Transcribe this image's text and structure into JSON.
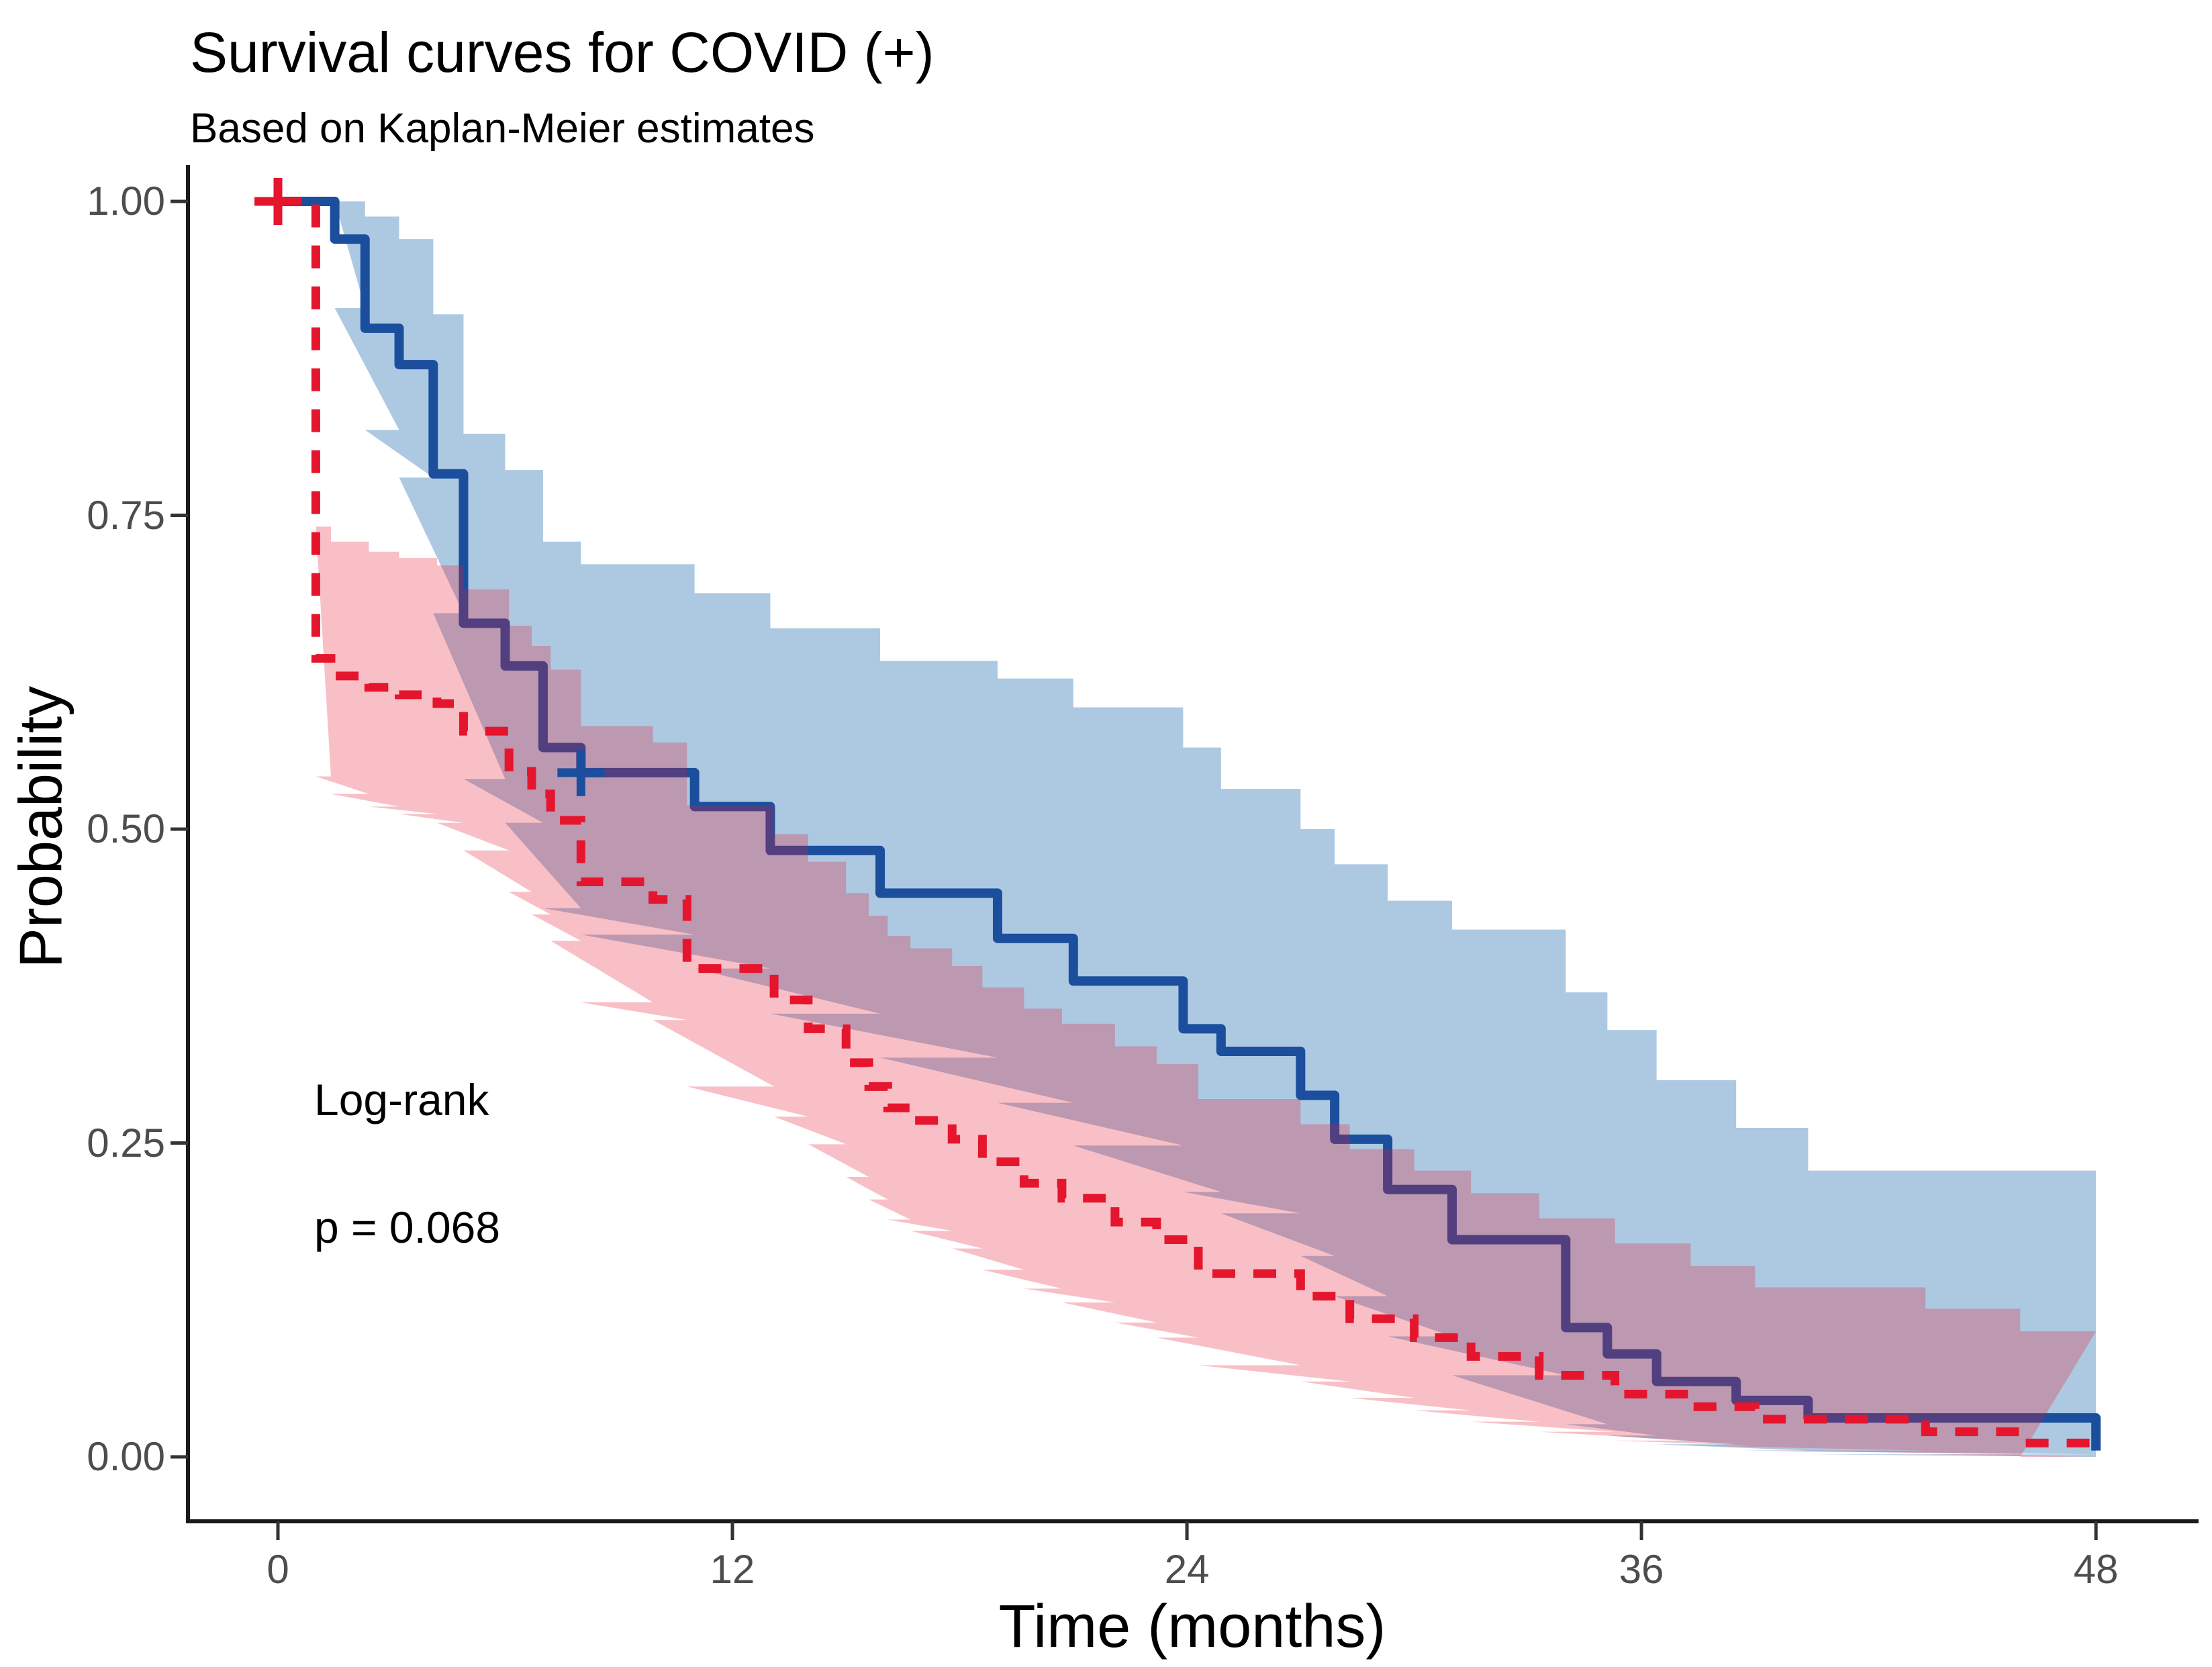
{
  "chart_data": {
    "type": "line",
    "subtype": "kaplan_meier_step",
    "title": "Survival curves for COVID (+)",
    "subtitle": "Based on Kaplan-Meier estimates",
    "xlabel": "Time (months)",
    "ylabel": "Probability",
    "xlim": [
      0,
      48
    ],
    "ylim": [
      0,
      1
    ],
    "grid": false,
    "legend_position": "none",
    "annotations": {
      "log_rank_label": "Log-rank",
      "p_value_text": "p = 0.068"
    },
    "x_axis": {
      "tick_values": [
        0,
        12,
        24,
        36,
        48
      ],
      "tick_labels": [
        "0",
        "12",
        "24",
        "36",
        "48"
      ]
    },
    "y_axis": {
      "tick_values": [
        0,
        0.25,
        0.5,
        0.75,
        1
      ],
      "tick_labels": [
        "0.00",
        "0.25",
        "0.50",
        "0.75",
        "1.00"
      ]
    },
    "series": [
      {
        "id": "group_blue_solid",
        "line_style": "solid",
        "line_color": "#1b4f9e",
        "band_color": "rgba(21,101,173,0.35)",
        "steps": [
          [
            0,
            1.0,
            1.0,
            1.0
          ],
          [
            1.5,
            0.97,
            0.915,
            1.0
          ],
          [
            2.3,
            0.899,
            0.818,
            0.988
          ],
          [
            3.2,
            0.87,
            0.78,
            0.97
          ],
          [
            4.1,
            0.783,
            0.672,
            0.91
          ],
          [
            4.9,
            0.664,
            0.54,
            0.815
          ],
          [
            6.0,
            0.63,
            0.505,
            0.786
          ],
          [
            7.0,
            0.565,
            0.437,
            0.729
          ],
          [
            8.0,
            0.545,
            0.416,
            0.711
          ],
          [
            11.0,
            0.518,
            0.389,
            0.688
          ],
          [
            13.0,
            0.483,
            0.353,
            0.66
          ],
          [
            15.9,
            0.449,
            0.318,
            0.634
          ],
          [
            19.0,
            0.413,
            0.282,
            0.62
          ],
          [
            21.0,
            0.379,
            0.248,
            0.597
          ],
          [
            23.9,
            0.341,
            0.211,
            0.565
          ],
          [
            24.9,
            0.323,
            0.194,
            0.532
          ],
          [
            27.0,
            0.288,
            0.16,
            0.5
          ],
          [
            27.9,
            0.253,
            0.128,
            0.472
          ],
          [
            29.3,
            0.213,
            0.096,
            0.443
          ],
          [
            31.0,
            0.173,
            0.065,
            0.42
          ],
          [
            34.0,
            0.103,
            0.026,
            0.37
          ],
          [
            35.1,
            0.082,
            0.017,
            0.34
          ],
          [
            36.4,
            0.06,
            0.01,
            0.3
          ],
          [
            38.5,
            0.045,
            0.005,
            0.262
          ],
          [
            40.4,
            0.031,
            0.002,
            0.228
          ],
          [
            48.0,
            0.005,
            0.0,
            0.228
          ]
        ],
        "censors": [
          [
            8.0,
            0.545
          ]
        ]
      },
      {
        "id": "group_red_dashed",
        "line_style": "dashed",
        "line_color": "#e5152d",
        "band_color": "rgba(229,21,45,0.27)",
        "steps": [
          [
            0,
            1.0,
            1.0,
            1.0
          ],
          [
            1.0,
            0.636,
            0.542,
            0.741
          ],
          [
            1.4,
            0.622,
            0.528,
            0.729
          ],
          [
            2.4,
            0.613,
            0.518,
            0.721
          ],
          [
            3.2,
            0.607,
            0.512,
            0.716
          ],
          [
            4.2,
            0.6,
            0.505,
            0.71
          ],
          [
            4.9,
            0.578,
            0.483,
            0.691
          ],
          [
            6.1,
            0.546,
            0.45,
            0.662
          ],
          [
            6.7,
            0.528,
            0.432,
            0.646
          ],
          [
            7.2,
            0.507,
            0.411,
            0.627
          ],
          [
            8.0,
            0.458,
            0.362,
            0.582
          ],
          [
            9.9,
            0.444,
            0.348,
            0.569
          ],
          [
            10.8,
            0.389,
            0.295,
            0.519
          ],
          [
            13.1,
            0.364,
            0.271,
            0.496
          ],
          [
            14.0,
            0.341,
            0.249,
            0.474
          ],
          [
            15.0,
            0.314,
            0.223,
            0.449
          ],
          [
            15.6,
            0.295,
            0.205,
            0.431
          ],
          [
            16.1,
            0.278,
            0.189,
            0.415
          ],
          [
            16.7,
            0.268,
            0.18,
            0.405
          ],
          [
            17.8,
            0.253,
            0.166,
            0.391
          ],
          [
            18.6,
            0.235,
            0.149,
            0.374
          ],
          [
            19.7,
            0.218,
            0.134,
            0.357
          ],
          [
            20.7,
            0.206,
            0.123,
            0.345
          ],
          [
            22.1,
            0.187,
            0.107,
            0.327
          ],
          [
            23.2,
            0.173,
            0.095,
            0.313
          ],
          [
            24.3,
            0.146,
            0.073,
            0.285
          ],
          [
            27.0,
            0.128,
            0.06,
            0.265
          ],
          [
            28.3,
            0.11,
            0.047,
            0.245
          ],
          [
            30.0,
            0.095,
            0.037,
            0.228
          ],
          [
            31.5,
            0.08,
            0.028,
            0.21
          ],
          [
            33.3,
            0.065,
            0.02,
            0.19
          ],
          [
            35.3,
            0.05,
            0.013,
            0.17
          ],
          [
            37.3,
            0.04,
            0.009,
            0.152
          ],
          [
            39.0,
            0.03,
            0.005,
            0.135
          ],
          [
            43.5,
            0.02,
            0.002,
            0.118
          ],
          [
            46.0,
            0.011,
            0.0,
            0.1
          ]
        ],
        "censors": [
          [
            0,
            1.0
          ]
        ]
      }
    ]
  },
  "colors": {
    "axis_line": "#1a1a1a",
    "tick_mark": "#333333",
    "tick_text": "#4d4d4d",
    "text": "#000000",
    "background": "#ffffff"
  }
}
